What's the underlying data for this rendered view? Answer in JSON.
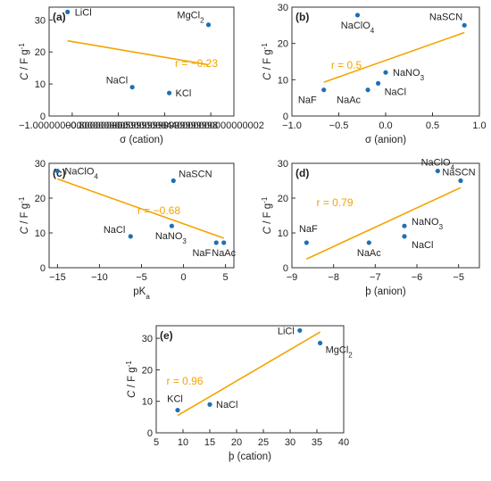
{
  "colors": {
    "point": "#1f6fb4",
    "fit": "#f5a300",
    "axis": "#333333"
  },
  "chart_data": [
    {
      "type": "scatter",
      "panel": "(a)",
      "xlabel": "σ (cation)",
      "ylabel": "C / F g-1",
      "xlim": [
        -1.1,
        -0.3
      ],
      "ylim": [
        0,
        34
      ],
      "xticks": [
        -1.0,
        -0.8,
        -0.6,
        -0.4
      ],
      "yticks": [
        0,
        10,
        20,
        30
      ],
      "points": [
        {
          "label": "LiCl",
          "x": -1.02,
          "y": 32.5
        },
        {
          "label": "MgCl2",
          "x": -0.41,
          "y": 28.5
        },
        {
          "label": "NaCl",
          "x": -0.74,
          "y": 9.0
        },
        {
          "label": "KCl",
          "x": -0.58,
          "y": 7.2
        }
      ],
      "fit_line": {
        "x": [
          -1.02,
          -0.41
        ],
        "y": [
          23.5,
          16.0
        ]
      },
      "annotation": "r = −0.23"
    },
    {
      "type": "scatter",
      "panel": "(b)",
      "xlabel": "σ (anion)",
      "ylabel": "C / F g-1",
      "xlim": [
        -1.0,
        1.0
      ],
      "ylim": [
        0,
        30
      ],
      "xticks": [
        -1.0,
        -0.5,
        0.0,
        0.5,
        1.0
      ],
      "yticks": [
        0,
        10,
        20,
        30
      ],
      "points": [
        {
          "label": "NaClO4",
          "x": -0.3,
          "y": 27.8
        },
        {
          "label": "NaSCN",
          "x": 0.84,
          "y": 25.0
        },
        {
          "label": "NaNO3",
          "x": 0.0,
          "y": 12.0
        },
        {
          "label": "NaCl",
          "x": -0.08,
          "y": 9.0
        },
        {
          "label": "NaF",
          "x": -0.66,
          "y": 7.2
        },
        {
          "label": "NaAc",
          "x": -0.19,
          "y": 7.2
        }
      ],
      "fit_line": {
        "x": [
          -0.66,
          0.84
        ],
        "y": [
          9.3,
          23.0
        ]
      },
      "annotation": "r = 0.5"
    },
    {
      "type": "scatter",
      "panel": "(c)",
      "xlabel": "pKa",
      "ylabel": "C / F g-1",
      "xlim": [
        -16,
        6
      ],
      "ylim": [
        0,
        30
      ],
      "xticks": [
        -15,
        -10,
        -5,
        0,
        5
      ],
      "yticks": [
        0,
        10,
        20,
        30
      ],
      "points": [
        {
          "label": "NaClO4",
          "x": -15.0,
          "y": 27.8
        },
        {
          "label": "NaSCN",
          "x": -1.2,
          "y": 25.0
        },
        {
          "label": "NaCl",
          "x": -6.3,
          "y": 9.0
        },
        {
          "label": "NaNO3",
          "x": -1.4,
          "y": 12.0
        },
        {
          "label": "NaF",
          "x": 3.9,
          "y": 7.2
        },
        {
          "label": "NaAc",
          "x": 4.8,
          "y": 7.2
        }
      ],
      "fit_line": {
        "x": [
          -15.0,
          4.8
        ],
        "y": [
          25.5,
          8.5
        ]
      },
      "annotation": "r = −0.68"
    },
    {
      "type": "scatter",
      "panel": "(d)",
      "xlabel": "þ (anion)",
      "ylabel": "C / F g-1",
      "xlim": [
        -9,
        -4.5
      ],
      "ylim": [
        0,
        30
      ],
      "xticks": [
        -9,
        -8,
        -7,
        -6,
        -5
      ],
      "yticks": [
        0,
        10,
        20,
        30
      ],
      "points": [
        {
          "label": "NaClO4",
          "x": -5.5,
          "y": 27.8
        },
        {
          "label": "NaSCN",
          "x": -4.95,
          "y": 25.0
        },
        {
          "label": "NaNO3",
          "x": -6.3,
          "y": 12.0
        },
        {
          "label": "NaCl",
          "x": -6.3,
          "y": 9.0
        },
        {
          "label": "NaF",
          "x": -8.65,
          "y": 7.2
        },
        {
          "label": "NaAc",
          "x": -7.15,
          "y": 7.2
        }
      ],
      "fit_line": {
        "x": [
          -8.65,
          -4.95
        ],
        "y": [
          2.5,
          23.0
        ]
      },
      "annotation": "r = 0.79"
    },
    {
      "type": "scatter",
      "panel": "(e)",
      "xlabel": "þ (cation)",
      "ylabel": "C / F g-1",
      "xlim": [
        5,
        40
      ],
      "ylim": [
        0,
        34
      ],
      "xticks": [
        5,
        10,
        15,
        20,
        25,
        30,
        35,
        40
      ],
      "yticks": [
        0,
        10,
        20,
        30
      ],
      "points": [
        {
          "label": "LiCl",
          "x": 31.8,
          "y": 32.5
        },
        {
          "label": "MgCl2",
          "x": 35.6,
          "y": 28.5
        },
        {
          "label": "KCl",
          "x": 9.0,
          "y": 7.2
        },
        {
          "label": "NaCl",
          "x": 15.0,
          "y": 9.0
        }
      ],
      "fit_line": {
        "x": [
          9.0,
          35.6
        ],
        "y": [
          5.5,
          32.0
        ]
      },
      "annotation": "r = 0.96"
    }
  ]
}
